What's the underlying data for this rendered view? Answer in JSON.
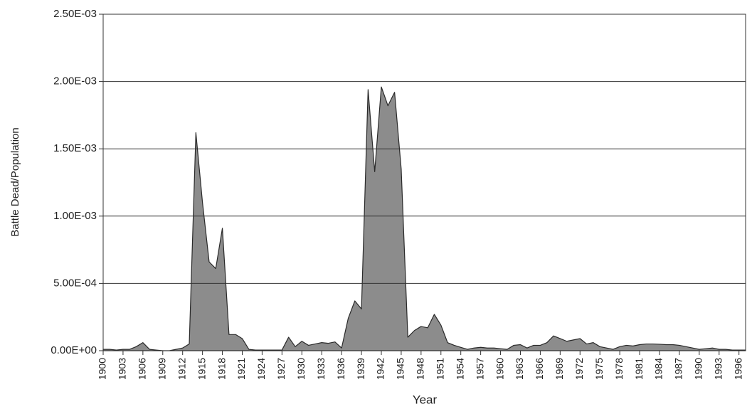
{
  "chart_data": {
    "type": "area",
    "y_label": "Battle Dead/Population",
    "x_label": "Year",
    "color": "#8c8c8c",
    "line_color": "#2a2a2a",
    "grid": true,
    "x": [
      1900,
      1901,
      1902,
      1903,
      1904,
      1905,
      1906,
      1907,
      1908,
      1909,
      1910,
      1911,
      1912,
      1913,
      1914,
      1915,
      1916,
      1917,
      1918,
      1919,
      1920,
      1921,
      1922,
      1923,
      1924,
      1925,
      1926,
      1927,
      1928,
      1929,
      1930,
      1931,
      1932,
      1933,
      1934,
      1935,
      1936,
      1937,
      1938,
      1939,
      1940,
      1941,
      1942,
      1943,
      1944,
      1945,
      1946,
      1947,
      1948,
      1949,
      1950,
      1951,
      1952,
      1953,
      1954,
      1955,
      1956,
      1957,
      1958,
      1959,
      1960,
      1961,
      1962,
      1963,
      1964,
      1965,
      1966,
      1967,
      1968,
      1969,
      1970,
      1971,
      1972,
      1973,
      1974,
      1975,
      1976,
      1977,
      1978,
      1979,
      1980,
      1981,
      1982,
      1983,
      1984,
      1985,
      1986,
      1987,
      1988,
      1989,
      1990,
      1991,
      1992,
      1993,
      1994,
      1995,
      1996,
      1997
    ],
    "values": [
      1e-05,
      1e-05,
      5e-06,
      1e-05,
      1e-05,
      3e-05,
      6e-05,
      1e-05,
      5e-06,
      0,
      0,
      1e-05,
      2e-05,
      5e-05,
      0.00162,
      0.0011,
      0.00066,
      0.00061,
      0.00091,
      0.00012,
      0.00012,
      9e-05,
      1e-05,
      5e-06,
      5e-06,
      5e-06,
      5e-06,
      5e-06,
      0.0001,
      3e-05,
      7e-05,
      4e-05,
      5e-05,
      6e-05,
      5.5e-05,
      6.5e-05,
      2e-05,
      0.00024,
      0.00037,
      0.00031,
      0.00194,
      0.00133,
      0.00196,
      0.00182,
      0.00192,
      0.00135,
      0.0001,
      0.00015,
      0.00018,
      0.00017,
      0.00027,
      0.00019,
      6e-05,
      4e-05,
      2.5e-05,
      1e-05,
      2e-05,
      2.5e-05,
      2e-05,
      2e-05,
      1.5e-05,
      1e-05,
      4e-05,
      4.5e-05,
      2e-05,
      4e-05,
      4e-05,
      6e-05,
      0.00011,
      9e-05,
      7e-05,
      8e-05,
      9e-05,
      5e-05,
      6e-05,
      3e-05,
      2e-05,
      1e-05,
      3e-05,
      4e-05,
      3.5e-05,
      4.5e-05,
      5e-05,
      5e-05,
      4.8e-05,
      4.5e-05,
      4.5e-05,
      4e-05,
      3e-05,
      2e-05,
      1e-05,
      1.5e-05,
      2e-05,
      1e-05,
      1e-05,
      5e-06,
      5e-06,
      5e-06
    ],
    "xlim": [
      1900,
      1997
    ],
    "xticks": [
      1900,
      1903,
      1906,
      1909,
      1912,
      1915,
      1918,
      1921,
      1924,
      1927,
      1930,
      1933,
      1936,
      1939,
      1942,
      1945,
      1948,
      1951,
      1954,
      1957,
      1960,
      1963,
      1966,
      1969,
      1972,
      1975,
      1978,
      1981,
      1984,
      1987,
      1990,
      1993,
      1996
    ],
    "ylim": [
      0,
      0.0025
    ],
    "yticks": [
      {
        "value": 0,
        "label": "0.00E+00"
      },
      {
        "value": 0.0005,
        "label": "5.00E-04"
      },
      {
        "value": 0.001,
        "label": "1.00E-03"
      },
      {
        "value": 0.0015,
        "label": "1.50E-03"
      },
      {
        "value": 0.002,
        "label": "2.00E-03"
      },
      {
        "value": 0.0025,
        "label": "2.50E-03"
      }
    ]
  }
}
